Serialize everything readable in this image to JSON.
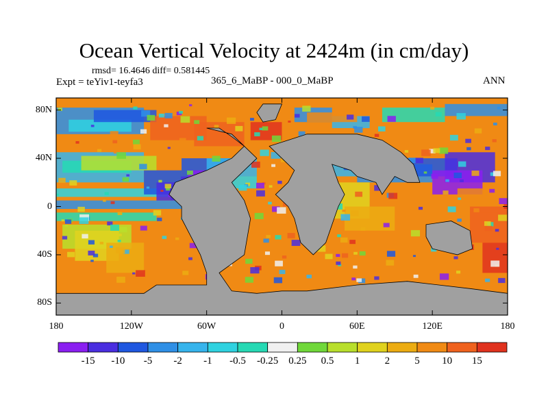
{
  "figure": {
    "title": "Ocean Vertical Velocity at 2424m (in cm/day)",
    "stats": "rmsd= 16.4646 diff= 0.581445",
    "experiment": "Expt = teYiv1-teyfa3",
    "case": "365_6_MaBP - 000_0_MaBP",
    "season": "ANN"
  },
  "axes": {
    "lat_ticks": [
      "80N",
      "40N",
      "0",
      "40S",
      "80S"
    ],
    "lat_values": [
      80,
      40,
      0,
      -40,
      -80
    ],
    "lon_ticks": [
      "180",
      "120W",
      "60W",
      "0",
      "60E",
      "120E",
      "180"
    ],
    "lon_values": [
      -180,
      -120,
      -60,
      0,
      60,
      120,
      180
    ],
    "xlim": [
      -180,
      180
    ],
    "ylim": [
      -90,
      90
    ]
  },
  "colorbar": {
    "labels": [
      "-15",
      "-10",
      "-5",
      "-2",
      "-1",
      "-0.5",
      "-0.25",
      "0.25",
      "0.5",
      "1",
      "2",
      "5",
      "10",
      "15"
    ],
    "colors": [
      "#8a1ff0",
      "#4a2ee0",
      "#1f57e0",
      "#2f8fe6",
      "#36b4ec",
      "#2fd2e0",
      "#26d9b4",
      "#f0f0f0",
      "#70d83a",
      "#b8df2c",
      "#e0d21e",
      "#ecac12",
      "#f08a14",
      "#ef621e",
      "#e0321e"
    ]
  },
  "colors": {
    "land": "#a0a0a0",
    "outline": "#000000"
  }
}
